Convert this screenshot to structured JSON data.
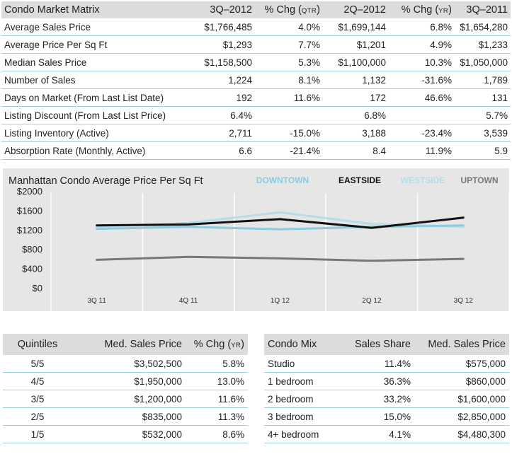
{
  "matrix": {
    "headers": {
      "label": "Condo  Market Matrix",
      "c1": "3Q–2012",
      "c2_main": "% Chg (",
      "c2_small": "QTR",
      "c2_end": ")",
      "c3": "2Q–2012",
      "c4_main": "% Chg (",
      "c4_small": "YR",
      "c4_end": ")",
      "c5": "3Q–2011"
    },
    "rows": [
      {
        "label": "Average Sales Price",
        "q3_2012": "$1,766,485",
        "chg_qtr": "4.0%",
        "q2_2012": "$1,699,144",
        "chg_yr": "6.8%",
        "q3_2011": "$1,654,280"
      },
      {
        "label": "Average Price Per Sq Ft",
        "q3_2012": "$1,293",
        "chg_qtr": "7.7%",
        "q2_2012": "$1,201",
        "chg_yr": "4.9%",
        "q3_2011": "$1,233"
      },
      {
        "label": "Median Sales Price",
        "q3_2012": "$1,158,500",
        "chg_qtr": "5.3%",
        "q2_2012": "$1,100,000",
        "chg_yr": "10.3%",
        "q3_2011": "$1,050,000"
      },
      {
        "label": "Number of Sales",
        "q3_2012": "1,224",
        "chg_qtr": "8.1%",
        "q2_2012": "1,132",
        "chg_yr": "-31.6%",
        "q3_2011": "1,789"
      },
      {
        "label": "Days on Market (From Last List Date)",
        "q3_2012": "192",
        "chg_qtr": "11.6%",
        "q2_2012": "172",
        "chg_yr": "46.6%",
        "q3_2011": "131"
      },
      {
        "label": "Listing Discount (From Last List Price)",
        "q3_2012": "6.4%",
        "chg_qtr": "",
        "q2_2012": "6.8%",
        "chg_yr": "",
        "q3_2011": "5.7%"
      },
      {
        "label": "Listing Inventory (Active)",
        "q3_2012": "2,711",
        "chg_qtr": "-15.0%",
        "q2_2012": "3,188",
        "chg_yr": "-23.4%",
        "q3_2011": "3,539"
      },
      {
        "label": "Absorption Rate (Monthly, Active)",
        "q3_2012": "6.6",
        "chg_qtr": "-21.4%",
        "q2_2012": "8.4",
        "chg_yr": "11.9%",
        "q3_2011": "5.9"
      }
    ]
  },
  "chart_data": {
    "type": "line",
    "title": "Manhattan Condo  Average Price Per Sq Ft",
    "categories": [
      "3Q 11",
      "4Q 11",
      "1Q 12",
      "2Q 12",
      "3Q 12"
    ],
    "y_tick_labels": [
      "$2000",
      "$1600",
      "$1200",
      "$800",
      "$400",
      "$0"
    ],
    "ylim": [
      0,
      2000
    ],
    "grid": "vertical",
    "legend_position": "top-right",
    "series": [
      {
        "name": "DOWNTOWN",
        "color": "#8ccbe0",
        "values": [
          1320,
          1360,
          1310,
          1360,
          1390
        ]
      },
      {
        "name": "EASTSIDE",
        "color": "#111111",
        "values": [
          1390,
          1410,
          1520,
          1340,
          1550
        ]
      },
      {
        "name": "WESTSIDE",
        "color": "#b7dcea",
        "values": [
          1360,
          1440,
          1660,
          1420,
          1360
        ]
      },
      {
        "name": "UPTOWN",
        "color": "#777777",
        "values": [
          680,
          740,
          710,
          660,
          700
        ]
      }
    ]
  },
  "quintiles": {
    "headers": {
      "c1": "Quintiles",
      "c2": "Med. Sales Price",
      "c3_main": "% Chg (",
      "c3_small": "YR",
      "c3_end": ")"
    },
    "rows": [
      {
        "q": "5/5",
        "price": "$3,502,500",
        "chg": "5.8%"
      },
      {
        "q": "4/5",
        "price": "$1,950,000",
        "chg": "13.0%"
      },
      {
        "q": "3/5",
        "price": "$1,200,000",
        "chg": "11.6%"
      },
      {
        "q": "2/5",
        "price": "$835,000",
        "chg": "11.3%"
      },
      {
        "q": "1/5",
        "price": "$532,000",
        "chg": "8.6%"
      }
    ]
  },
  "condo_mix": {
    "headers": {
      "c1": "Condo Mix",
      "c2": "Sales Share",
      "c3": "Med. Sales Price"
    },
    "rows": [
      {
        "type": "Studio",
        "share": "11.4%",
        "price": "$575,000"
      },
      {
        "type": "1 bedroom",
        "share": "36.3%",
        "price": "$860,000"
      },
      {
        "type": "2 bedroom",
        "share": "33.2%",
        "price": "$1,600,000"
      },
      {
        "type": "3 bedroom",
        "share": "15.0%",
        "price": "$2,850,000"
      },
      {
        "type": "4+ bedroom",
        "share": "4.1%",
        "price": "$4,480,300"
      }
    ]
  }
}
